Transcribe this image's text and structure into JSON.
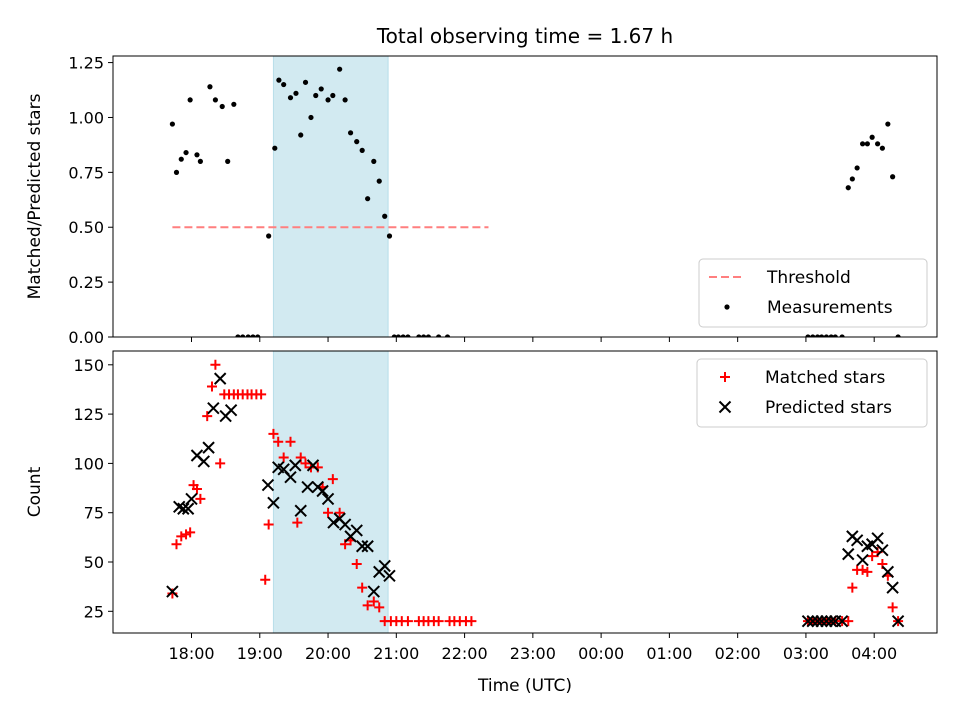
{
  "chart_data": [
    {
      "type": "scatter",
      "title": "Total observing time = 1.67 h",
      "ylabel": "Matched/Predicted stars",
      "xlabel": "",
      "ylim": [
        0,
        1.28
      ],
      "yticks": [
        0.0,
        0.25,
        0.5,
        0.75,
        1.0,
        1.25
      ],
      "ytick_labels": [
        "0.00",
        "0.25",
        "0.50",
        "0.75",
        "1.00",
        "1.25"
      ],
      "x_unit": "hours since 18:00 UTC",
      "shaded_interval": [
        19.2,
        20.88
      ],
      "shade_color": "#add8e6",
      "legend_position": "lower-right",
      "legend": [
        "Threshold",
        "Measurements"
      ],
      "series": [
        {
          "name": "Threshold",
          "kind": "dashed-line",
          "color": "#ff7f7f",
          "x": [
            17.72,
            22.35
          ],
          "y": [
            0.5,
            0.5
          ]
        },
        {
          "name": "Measurements",
          "kind": "dot",
          "color": "#000000",
          "x": [
            17.72,
            17.78,
            17.85,
            17.92,
            17.98,
            18.08,
            18.13,
            18.27,
            18.35,
            18.45,
            18.53,
            18.62,
            18.68,
            18.75,
            18.83,
            18.9,
            18.97,
            19.13,
            19.22,
            19.28,
            19.35,
            19.45,
            19.53,
            19.6,
            19.67,
            19.75,
            19.82,
            19.9,
            20.0,
            20.07,
            20.17,
            20.25,
            20.33,
            20.42,
            20.5,
            20.58,
            20.67,
            20.75,
            20.83,
            20.9,
            20.97,
            21.03,
            21.1,
            21.17,
            21.33,
            21.4,
            21.47,
            21.62,
            21.75,
            27.03,
            27.1,
            27.17,
            27.23,
            27.3,
            27.37,
            27.43,
            27.53,
            27.62,
            27.68,
            27.75,
            27.83,
            27.9,
            27.97,
            28.05,
            28.12,
            28.2,
            28.27,
            28.35
          ],
          "y": [
            0.97,
            0.75,
            0.81,
            0.84,
            1.08,
            0.83,
            0.8,
            1.14,
            1.08,
            1.05,
            0.8,
            1.06,
            0.0,
            0.0,
            0.0,
            0.0,
            0.0,
            0.46,
            0.86,
            1.17,
            1.15,
            1.09,
            1.11,
            0.92,
            1.16,
            1.0,
            1.1,
            1.13,
            1.08,
            1.1,
            1.22,
            1.08,
            0.93,
            0.89,
            0.85,
            0.63,
            0.8,
            0.71,
            0.55,
            0.46,
            0.0,
            0.0,
            0.0,
            0.0,
            0.0,
            0.0,
            0.0,
            0.0,
            0.0,
            0.0,
            0.0,
            0.0,
            0.0,
            0.0,
            0.0,
            0.0,
            0.0,
            0.68,
            0.72,
            0.77,
            0.88,
            0.88,
            0.91,
            0.88,
            0.86,
            0.97,
            0.73,
            0.0
          ]
        }
      ]
    },
    {
      "type": "scatter",
      "title": "",
      "ylabel": "Count",
      "xlabel": "Time (UTC)",
      "ylim": [
        14,
        157
      ],
      "yticks": [
        25,
        50,
        75,
        100,
        125,
        150
      ],
      "ytick_labels": [
        "25",
        "50",
        "75",
        "100",
        "125",
        "150"
      ],
      "x_unit": "hours since 18:00 UTC",
      "xlim": [
        16.85,
        28.92
      ],
      "xticks": [
        18,
        19,
        20,
        21,
        22,
        23,
        24,
        25,
        26,
        27,
        28
      ],
      "xtick_labels": [
        "18:00",
        "19:00",
        "20:00",
        "21:00",
        "22:00",
        "23:00",
        "00:00",
        "01:00",
        "02:00",
        "03:00",
        "04:00"
      ],
      "shaded_interval": [
        19.2,
        20.88
      ],
      "shade_color": "#add8e6",
      "legend_position": "top-right",
      "legend": [
        "Matched stars",
        "Predicted stars"
      ],
      "series": [
        {
          "name": "Matched stars",
          "marker": "plus",
          "color": "#ff0000",
          "x": [
            17.72,
            17.78,
            17.85,
            17.92,
            17.98,
            18.03,
            18.08,
            18.13,
            18.23,
            18.3,
            18.35,
            18.42,
            18.48,
            18.55,
            18.62,
            18.68,
            18.75,
            18.82,
            18.88,
            18.95,
            19.02,
            19.08,
            19.13,
            19.2,
            19.27,
            19.35,
            19.45,
            19.55,
            19.6,
            19.67,
            19.75,
            19.85,
            19.92,
            20.0,
            20.07,
            20.17,
            20.25,
            20.33,
            20.42,
            20.5,
            20.58,
            20.67,
            20.75,
            20.83,
            20.92,
            21.0,
            21.08,
            21.17,
            21.33,
            21.4,
            21.47,
            21.55,
            21.62,
            21.78,
            21.85,
            21.93,
            22.02,
            22.1,
            27.03,
            27.1,
            27.17,
            27.23,
            27.3,
            27.37,
            27.43,
            27.53,
            27.62,
            27.68,
            27.75,
            27.83,
            27.9,
            27.97,
            28.05,
            28.12,
            28.2,
            28.27,
            28.35
          ],
          "y": [
            34,
            59,
            63,
            64,
            65,
            89,
            87,
            82,
            124,
            139,
            150,
            100,
            135,
            135,
            135,
            135,
            135,
            135,
            135,
            135,
            135,
            41,
            69,
            115,
            111,
            103,
            111,
            70,
            103,
            100,
            98,
            98,
            88,
            75,
            92,
            75,
            59,
            61,
            49,
            37,
            28,
            30,
            27,
            20,
            20,
            20,
            20,
            20,
            20,
            20,
            20,
            20,
            20,
            20,
            20,
            20,
            20,
            20,
            20,
            20,
            20,
            20,
            20,
            20,
            20,
            20,
            20,
            37,
            46,
            46,
            45,
            53,
            55,
            49,
            43,
            27,
            20
          ]
        },
        {
          "name": "Predicted stars",
          "marker": "x",
          "color": "#000000",
          "x": [
            17.72,
            17.82,
            17.88,
            17.95,
            18.0,
            18.08,
            18.18,
            18.25,
            18.32,
            18.42,
            18.5,
            18.58,
            19.12,
            19.2,
            19.27,
            19.35,
            19.45,
            19.52,
            19.6,
            19.7,
            19.78,
            19.85,
            19.92,
            20.0,
            20.08,
            20.17,
            20.25,
            20.33,
            20.42,
            20.5,
            20.58,
            20.67,
            20.75,
            20.83,
            20.9,
            27.03,
            27.1,
            27.17,
            27.23,
            27.3,
            27.37,
            27.43,
            27.53,
            27.62,
            27.68,
            27.75,
            27.83,
            27.9,
            27.97,
            28.05,
            28.12,
            28.2,
            28.27,
            28.35
          ],
          "y": [
            35,
            78,
            77,
            77,
            82,
            104,
            101,
            108,
            128,
            143,
            124,
            127,
            89,
            80,
            98,
            97,
            93,
            99,
            76,
            88,
            99,
            88,
            86,
            82,
            70,
            72,
            69,
            63,
            66,
            58,
            58,
            35,
            45,
            48,
            43,
            20,
            20,
            20,
            20,
            20,
            20,
            20,
            20,
            54,
            63,
            61,
            51,
            58,
            59,
            62,
            56,
            45,
            37,
            20
          ]
        }
      ]
    }
  ]
}
